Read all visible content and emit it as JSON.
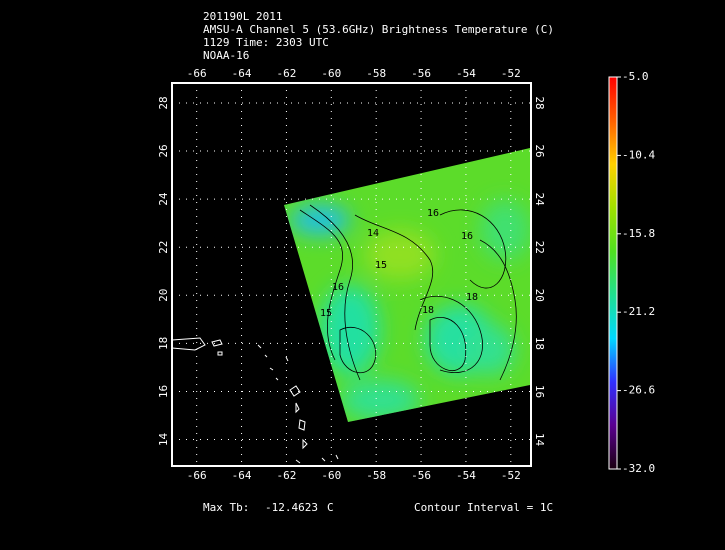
{
  "header": {
    "lines": [
      "201190L 2011",
      "AMSU-A Channel 5 (53.6GHz) Brightness Temperature (C)",
      "1129 Time: 2303 UTC",
      "NOAA-16"
    ]
  },
  "map": {
    "xlim": [
      -67.1,
      -51.1
    ],
    "ylim": [
      12.9,
      28.83
    ],
    "xticks": [
      -66,
      -64,
      -62,
      -60,
      -58,
      -56,
      -54,
      -52
    ],
    "yticks": [
      14,
      16,
      18,
      20,
      22,
      24,
      26,
      28
    ],
    "grid": true
  },
  "colorbar": {
    "lim": [
      -32,
      -5
    ],
    "ticks": [
      {
        "value": -5,
        "label": "-5.0"
      },
      -10.4,
      -15.8,
      -21.2,
      -26.6,
      {
        "value": -32,
        "label": "-32.0"
      }
    ],
    "colors": [
      "#1a0010",
      "#5a0090",
      "#3030ff",
      "#00d8ff",
      "#20e090",
      "#50e020",
      "#a0e000",
      "#ffd000",
      "#ff6000",
      "#ff0000"
    ]
  },
  "contour_labels": [
    "16",
    "14",
    "15",
    "16",
    "16",
    "15",
    "18",
    "18"
  ],
  "footer": {
    "max_label": "Max Tb:",
    "max_value": "-12.4623",
    "unit": "C",
    "interval": "Contour Interval = 1C"
  }
}
